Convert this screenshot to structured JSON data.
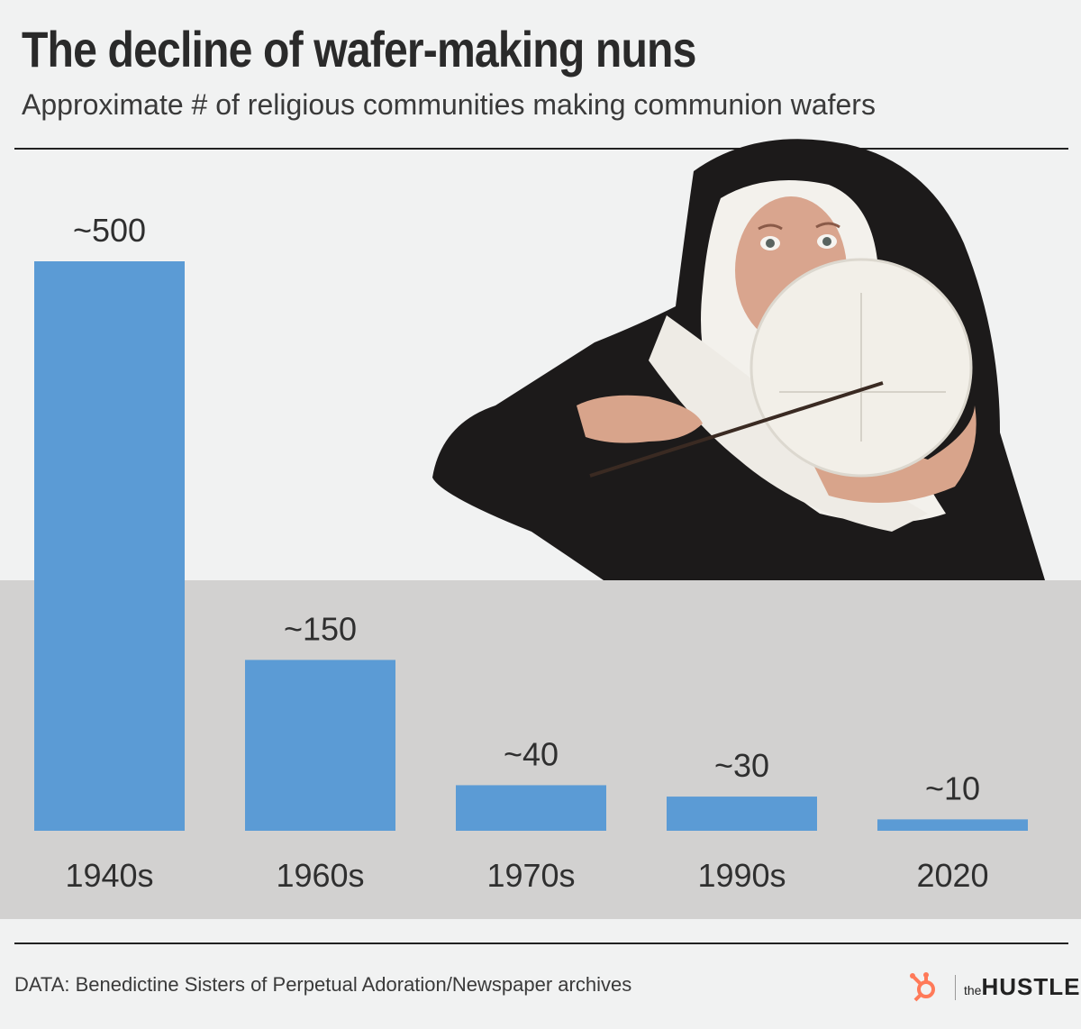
{
  "header": {
    "title": "The decline of wafer-making nuns",
    "subtitle": "Approximate # of religious communities making communion wafers"
  },
  "chart_data": {
    "type": "bar",
    "title": "The decline of wafer-making nuns",
    "subtitle": "Approximate # of religious communities making communion wafers",
    "categories": [
      "1940s",
      "1960s",
      "1970s",
      "1990s",
      "2020"
    ],
    "values": [
      500,
      150,
      40,
      30,
      10
    ],
    "value_labels": [
      "~500",
      "~150",
      "~40",
      "~30",
      "~10"
    ],
    "ylim": [
      0,
      500
    ],
    "grid": false,
    "bar_color": "#5b9bd5"
  },
  "footer": {
    "source": "DATA: Benedictine Sisters of Perpetual Adoration/Newspaper archives",
    "logo_the": "the",
    "logo_hustle": "HUSTLE"
  },
  "colors": {
    "background": "#f1f2f2",
    "band": "#d2d1d0",
    "bar": "#5b9bd5",
    "logo_accent": "#ff7a59"
  },
  "icons": {
    "logo": "hubspot-sprocket-icon"
  }
}
